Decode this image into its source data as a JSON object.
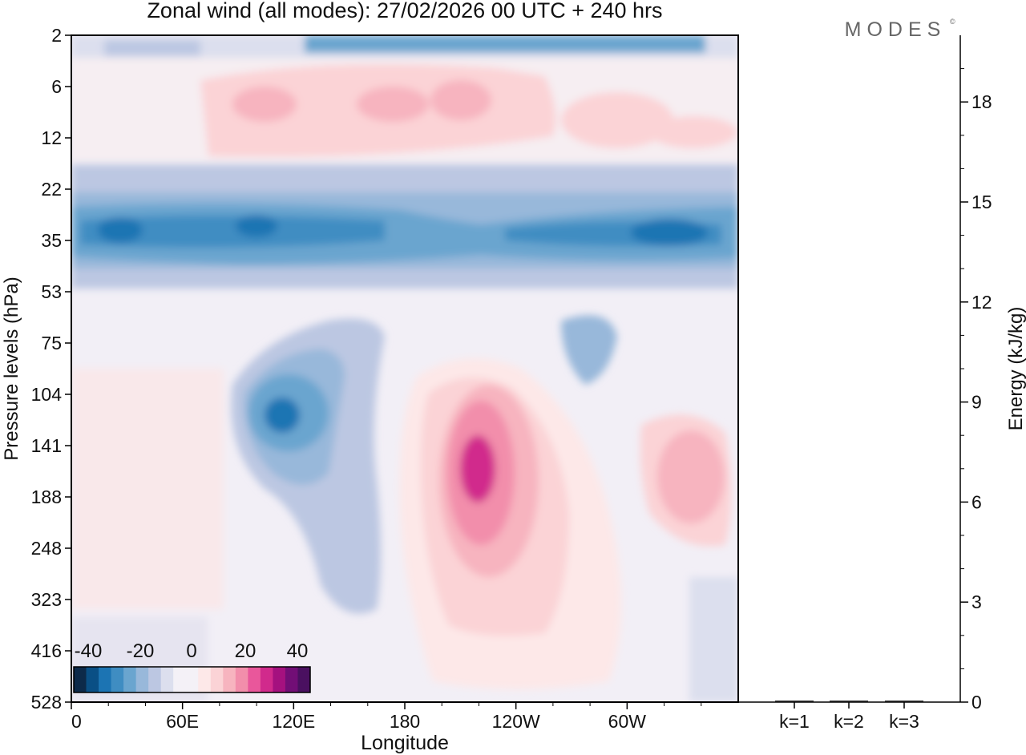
{
  "title": "Zonal wind (all modes):  27/02/2026  00 UTC  + 240 hrs",
  "brand": "MODES",
  "brand_mark": "©",
  "colors": {
    "neg": [
      "#0d2a4a",
      "#0a4f85",
      "#1c74b3",
      "#3f8dc2",
      "#6aa5cf",
      "#98b8da",
      "#bcc7e2",
      "#dcdfee"
    ],
    "neutral": "#f4f1f7",
    "pos": [
      "#fde8e8",
      "#fbd3d6",
      "#f7b4bf",
      "#f28eab",
      "#e9579b",
      "#d12a8c",
      "#a5117f",
      "#720e76",
      "#4a1060"
    ]
  },
  "chart_data": [
    {
      "type": "contour",
      "name": "zonal-wind-cross-section",
      "xlabel": "Longitude",
      "ylabel": "Pressure levels (hPa)",
      "x_ticks": [
        "0",
        "60E",
        "120E",
        "180",
        "120W",
        "60W"
      ],
      "x_tick_values": [
        0,
        60,
        120,
        180,
        240,
        300
      ],
      "xlim": [
        0,
        360
      ],
      "y_ticks": [
        "2",
        "6",
        "12",
        "22",
        "35",
        "53",
        "75",
        "104",
        "141",
        "188",
        "248",
        "323",
        "416",
        "528"
      ],
      "colorbar": {
        "labels": [
          "-40",
          "-20",
          "0",
          "20",
          "40"
        ],
        "label_values": [
          -40,
          -20,
          0,
          20,
          40
        ],
        "range": [
          -40,
          40
        ]
      },
      "features": [
        {
          "desc": "westerly jet core",
          "lon": 210,
          "level": "141-188",
          "u": 40
        },
        {
          "desc": "easterly core",
          "lon": 115,
          "level": "104-141",
          "u": -30
        },
        {
          "desc": "easterly band",
          "lon": "0-360",
          "level": "22-35",
          "u": -25
        },
        {
          "desc": "westerly band",
          "lon": "70-360",
          "level": "6-12",
          "u": 10
        },
        {
          "desc": "easterly strip",
          "lon": "130-340",
          "level": "2",
          "u": -15
        }
      ]
    },
    {
      "type": "bar",
      "name": "energy-by-wavenumber",
      "categories": [
        "k=1",
        "k=2",
        "k=3"
      ],
      "values": [
        0.02,
        0.02,
        0.02
      ],
      "ylabel": "Energy (kJ/kg)",
      "ylim": [
        0,
        20
      ],
      "y_ticks": [
        0,
        3,
        6,
        9,
        12,
        15,
        18
      ]
    }
  ]
}
